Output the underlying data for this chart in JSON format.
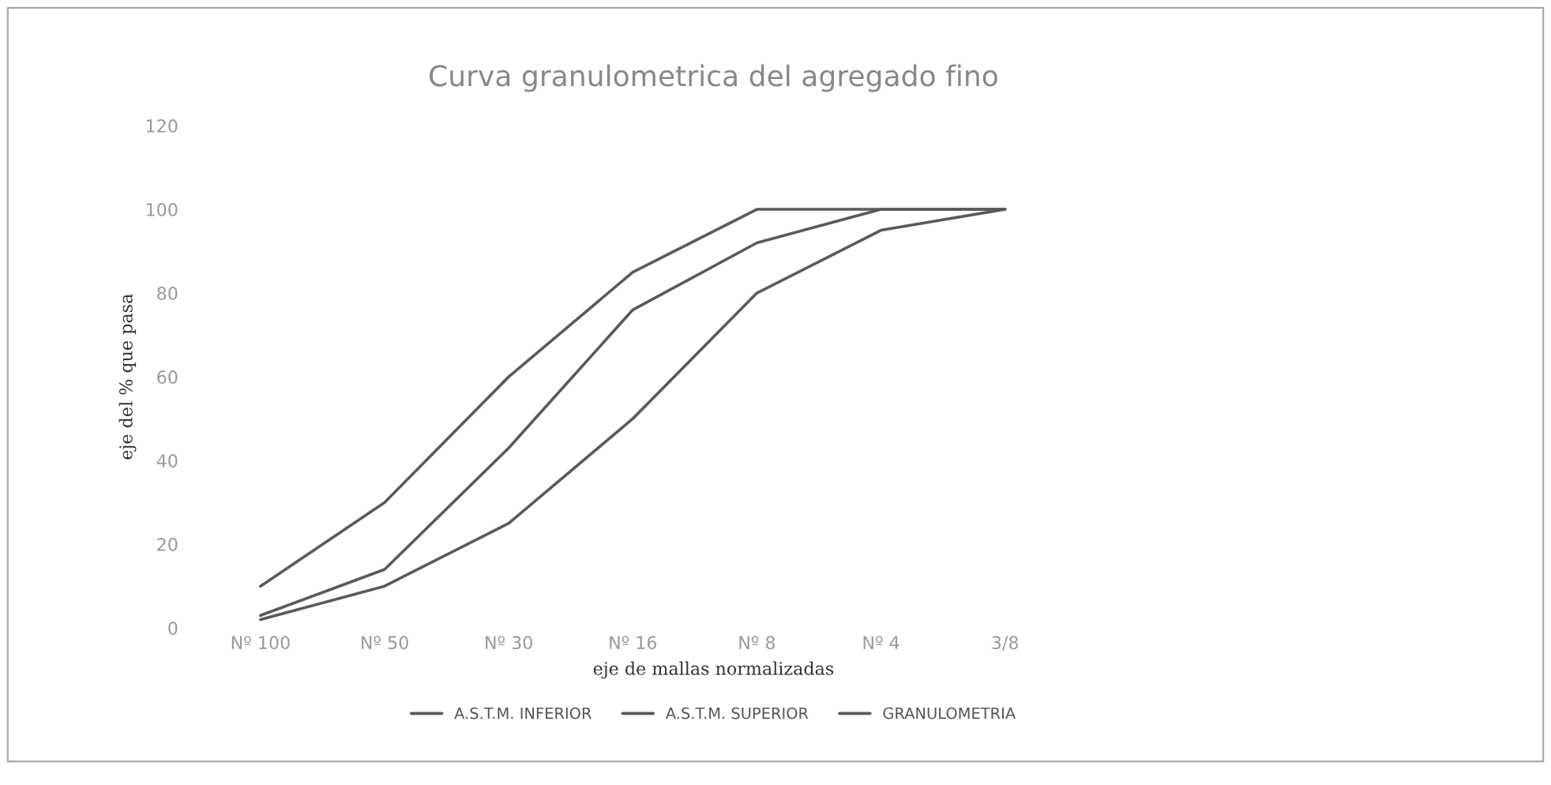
{
  "chart_data": {
    "type": "line",
    "title": "Curva granulometrica del agregado fino",
    "xlabel": "eje de mallas normalizadas",
    "ylabel": "eje del % que pasa",
    "categories": [
      "Nº 100",
      "Nº 50",
      "Nº 30",
      "Nº 16",
      "Nº 8",
      "Nº 4",
      "3/8"
    ],
    "series": [
      {
        "name": "A.S.T.M. INFERIOR",
        "color": "#5a5a5a",
        "values": [
          2,
          10,
          25,
          50,
          80,
          95,
          100
        ]
      },
      {
        "name": "A.S.T.M. SUPERIOR",
        "color": "#5a5a5a",
        "values": [
          10,
          30,
          60,
          85,
          100,
          100,
          100
        ]
      },
      {
        "name": "GRANULOMETRIA",
        "color": "#5a5a5a",
        "values": [
          3,
          14,
          43,
          76,
          92,
          100,
          100
        ]
      }
    ],
    "ylim": [
      0,
      120
    ],
    "yticks": [
      0,
      20,
      40,
      60,
      80,
      100,
      120
    ],
    "grid": false,
    "legend": "bottom",
    "marker": "none",
    "line_style": "solid"
  }
}
